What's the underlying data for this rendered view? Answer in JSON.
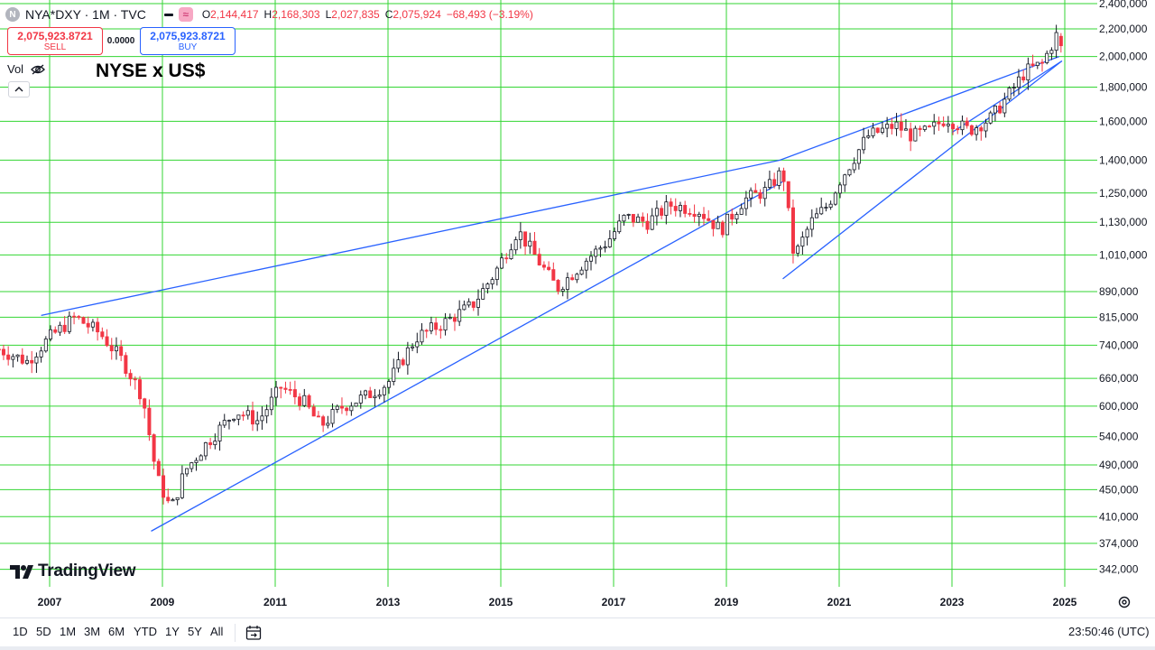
{
  "header": {
    "logo_letter": "N",
    "symbol": "NYA*DXY · 1M · TVC",
    "ohlc": {
      "o_label": "O",
      "o_value": "2,144,417",
      "h_label": "H",
      "h_value": "2,168,303",
      "l_label": "L",
      "l_value": "2,027,835",
      "c_label": "C",
      "c_value": "2,075,924",
      "change": "−68,493 (−3.19%)"
    }
  },
  "trade": {
    "sell_price": "2,075,923.8721",
    "sell_label": "SELL",
    "spread": "0.0000",
    "buy_price": "2,075,923.8721",
    "buy_label": "BUY"
  },
  "vol_label": "Vol",
  "chart_title": "NYSE x US$",
  "brand": "TradingView",
  "toolbar": {
    "ranges": [
      "1D",
      "5D",
      "1M",
      "3M",
      "6M",
      "YTD",
      "1Y",
      "5Y",
      "All"
    ],
    "clock": "23:50:46 (UTC)"
  },
  "colors": {
    "up": "#131722",
    "down": "#f23645",
    "grid": "#33d633",
    "trendline": "#2962ff"
  },
  "chart_data": {
    "type": "candlestick",
    "title": "NYSE x US$",
    "interval": "1M",
    "y_scale": "log",
    "ylim": [
      320000,
      2400000
    ],
    "xlim": [
      2006.1,
      2025.8
    ],
    "x_ticks": [
      "2007",
      "2009",
      "2011",
      "2013",
      "2015",
      "2017",
      "2019",
      "2021",
      "2023",
      "2025"
    ],
    "y_ticks": [
      "2,400,000",
      "2,200,000",
      "2,000,000",
      "1,800,000",
      "1,600,000",
      "1,400,000",
      "1,250,000",
      "1,130,000",
      "1,010,000",
      "890,000",
      "815,000",
      "740,000",
      "660,000",
      "600,000",
      "540,000",
      "490,000",
      "450,000",
      "410,000",
      "374,000",
      "342,000"
    ],
    "grid": true,
    "close_path": [
      [
        2006.1,
        730000
      ],
      [
        2006.6,
        700000
      ],
      [
        2007.0,
        760000
      ],
      [
        2007.45,
        815000
      ],
      [
        2007.9,
        770000
      ],
      [
        2008.3,
        700000
      ],
      [
        2008.65,
        620000
      ],
      [
        2008.9,
        470000
      ],
      [
        2009.15,
        420000
      ],
      [
        2009.4,
        480000
      ],
      [
        2009.8,
        530000
      ],
      [
        2010.3,
        590000
      ],
      [
        2010.7,
        570000
      ],
      [
        2011.1,
        640000
      ],
      [
        2011.5,
        610000
      ],
      [
        2011.8,
        560000
      ],
      [
        2012.2,
        600000
      ],
      [
        2012.6,
        620000
      ],
      [
        2013.0,
        650000
      ],
      [
        2013.5,
        760000
      ],
      [
        2014.0,
        800000
      ],
      [
        2014.5,
        850000
      ],
      [
        2014.9,
        950000
      ],
      [
        2015.3,
        1100000
      ],
      [
        2015.7,
        980000
      ],
      [
        2016.0,
        900000
      ],
      [
        2016.5,
        990000
      ],
      [
        2016.9,
        1060000
      ],
      [
        2017.2,
        1150000
      ],
      [
        2017.6,
        1130000
      ],
      [
        2018.0,
        1200000
      ],
      [
        2018.5,
        1180000
      ],
      [
        2018.9,
        1100000
      ],
      [
        2019.3,
        1220000
      ],
      [
        2019.7,
        1260000
      ],
      [
        2020.0,
        1350000
      ],
      [
        2020.2,
        1000000
      ],
      [
        2020.5,
        1130000
      ],
      [
        2020.8,
        1200000
      ],
      [
        2021.0,
        1300000
      ],
      [
        2021.5,
        1520000
      ],
      [
        2022.0,
        1580000
      ],
      [
        2022.3,
        1520000
      ],
      [
        2022.6,
        1550000
      ],
      [
        2022.9,
        1620000
      ],
      [
        2023.3,
        1550000
      ],
      [
        2023.7,
        1620000
      ],
      [
        2024.0,
        1750000
      ],
      [
        2024.3,
        1900000
      ],
      [
        2024.6,
        1950000
      ],
      [
        2024.85,
        2150000
      ],
      [
        2024.95,
        2075924
      ]
    ],
    "trendlines": [
      {
        "from": [
          2006.85,
          820000
        ],
        "to": [
          2019.95,
          1400000
        ]
      },
      {
        "from": [
          2008.8,
          390000
        ],
        "to": [
          2020.0,
          1300000
        ]
      },
      {
        "from": [
          2019.95,
          1400000
        ],
        "to": [
          2024.9,
          2000000
        ]
      },
      {
        "from": [
          2020.0,
          930000
        ],
        "to": [
          2024.95,
          1970000
        ]
      },
      {
        "from": [
          2023.0,
          1540000
        ],
        "to": [
          2024.95,
          1970000
        ]
      }
    ],
    "last": {
      "open": 2144417,
      "high": 2168303,
      "low": 2027835,
      "close": 2075924,
      "change": -68493,
      "change_pct": -3.19
    }
  }
}
